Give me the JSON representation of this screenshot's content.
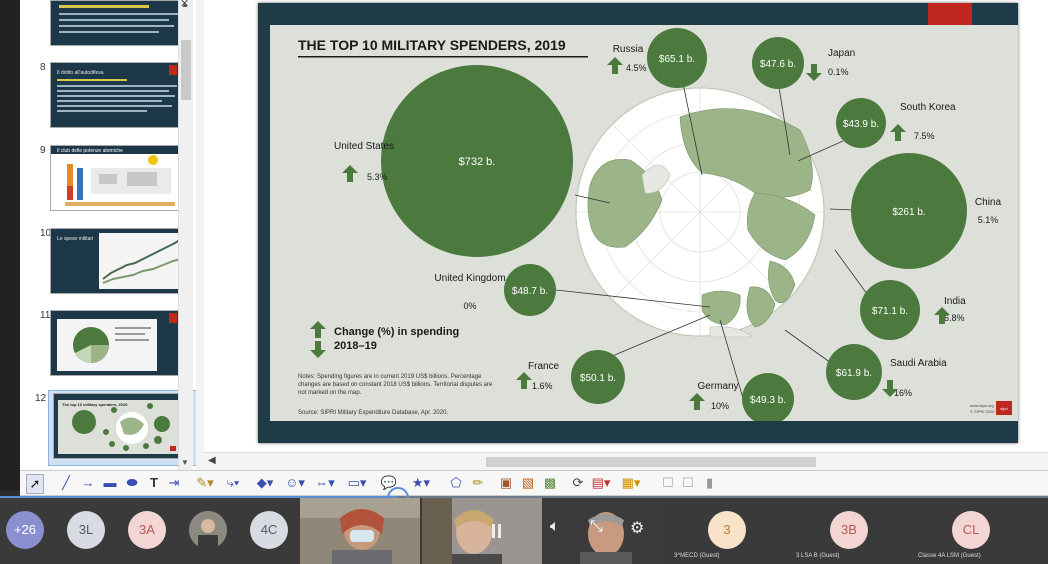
{
  "thumbnails": [
    {
      "num": "8",
      "heading": "Il diritto all'autodifesa"
    },
    {
      "num": "9",
      "heading": "Il club delle potenze atomiche"
    },
    {
      "num": "10",
      "heading": "Le spese militari"
    },
    {
      "num": "11",
      "heading": ""
    },
    {
      "num": "12",
      "heading": "The top 10 military spenders, 2019"
    }
  ],
  "slide": {
    "title": "THE TOP 10 MILITARY SPENDERS, 2019",
    "countries": [
      {
        "name": "United States",
        "value": "$732 b.",
        "change": "5.3%",
        "direction": "up"
      },
      {
        "name": "Russia",
        "value": "$65.1 b.",
        "change": "4.5%",
        "direction": "up"
      },
      {
        "name": "Japan",
        "value": "$47.6 b.",
        "change": "0.1%",
        "direction": "down"
      },
      {
        "name": "South Korea",
        "value": "$43.9 b.",
        "change": "7.5%",
        "direction": "up"
      },
      {
        "name": "China",
        "value": "$261 b.",
        "change": "5.1%",
        "direction": "up"
      },
      {
        "name": "India",
        "value": "$71.1 b.",
        "change": "6.8%",
        "direction": "up"
      },
      {
        "name": "Saudi Arabia",
        "value": "$61.9 b.",
        "change": "16%",
        "direction": "down"
      },
      {
        "name": "Germany",
        "value": "$49.3 b.",
        "change": "10%",
        "direction": "up"
      },
      {
        "name": "France",
        "value": "$50.1 b.",
        "change": "1.6%",
        "direction": "up"
      },
      {
        "name": "United Kingdom",
        "value": "$48.7 b.",
        "change": "0%",
        "direction": "none"
      }
    ],
    "legend": "Change (%) in spending 2018–19",
    "notes": "Notes: Spending figures are in current 2019 US$ billions. Percentage changes are based on constant 2018 US$ billions. Territorial disputes are not marked on the map.",
    "source": "Source: SIPRI Military Expenditure Database, Apr. 2020.",
    "footer_url": "www.sipri.org",
    "footer_copy": "© SIPRI 2020",
    "logo": "sipri"
  },
  "participants": [
    {
      "label": "+26",
      "bg": "#8a8fd0",
      "fg": "#ffffff"
    },
    {
      "label": "3L",
      "bg": "#d9dbe2",
      "fg": "#555a6b"
    },
    {
      "label": "3A",
      "bg": "#f3d5d3",
      "fg": "#b65a55"
    },
    {
      "label": "4C",
      "bg": "#d9dbe2",
      "fg": "#555a6b"
    },
    {
      "label": "3",
      "bg": "#f8e2c8",
      "fg": "#b57d3e",
      "name": "3^MECD (Guest)"
    },
    {
      "label": "3B",
      "bg": "#f3d5d3",
      "fg": "#b65a55",
      "name": "3 LSA B (Guest)"
    },
    {
      "label": "CL",
      "bg": "#f3d5d3",
      "fg": "#b65a55",
      "name": "Classe 4A LSM (Guest)"
    }
  ],
  "colors": {
    "bubble": "#4c7a3e",
    "panel": "#dde0d8",
    "map": "#9bb589"
  }
}
